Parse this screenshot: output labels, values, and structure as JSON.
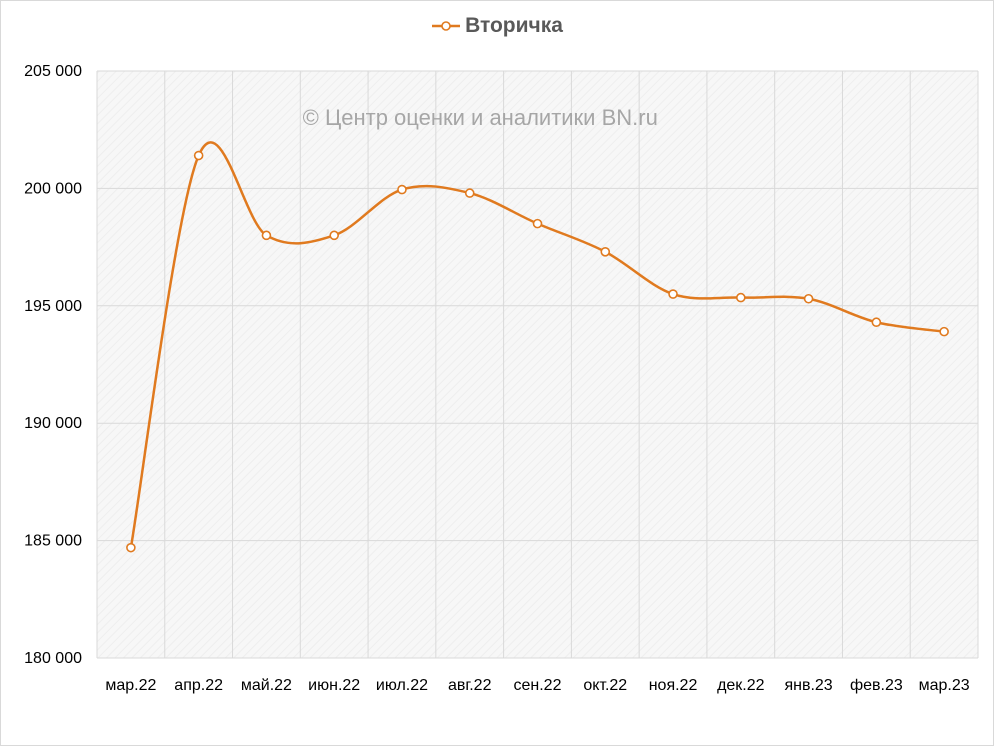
{
  "chart_data": {
    "type": "line",
    "legend_position": "top",
    "series": [
      {
        "name": "Вторичка",
        "color": "#E07A1F",
        "values": [
          184700,
          201400,
          198000,
          198000,
          199950,
          199800,
          198500,
          197300,
          195500,
          195350,
          195300,
          194300,
          193900
        ]
      }
    ],
    "categories": [
      "мар.22",
      "апр.22",
      "май.22",
      "июн.22",
      "июл.22",
      "авг.22",
      "сен.22",
      "окт.22",
      "ноя.22",
      "дек.22",
      "янв.23",
      "фев.23",
      "мар.23"
    ],
    "ylim": [
      180000,
      205000
    ],
    "yticks": [
      180000,
      185000,
      190000,
      195000,
      200000,
      205000
    ],
    "ytick_labels": [
      "180 000",
      "185 000",
      "190 000",
      "195 000",
      "200 000",
      "205 000"
    ],
    "grid": true,
    "watermark": "© Центр оценки и аналитики BN.ru"
  }
}
